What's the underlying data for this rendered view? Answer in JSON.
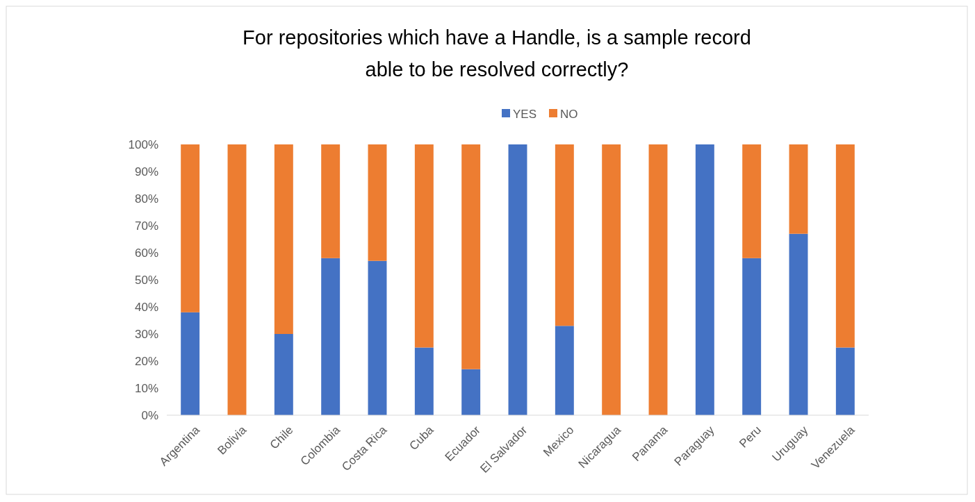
{
  "chart_data": {
    "type": "bar",
    "title": "For repositories which have a Handle, is a sample record able to be resolved correctly?",
    "categories": [
      "Argentina",
      "Bolivia",
      "Chile",
      "Colombia",
      "Costa Rica",
      "Cuba",
      "Ecuador",
      "El Salvador",
      "Mexico",
      "Nicaragua",
      "Panama",
      "Paraguay",
      "Peru",
      "Uruguay",
      "Venezuela"
    ],
    "series": [
      {
        "name": "YES",
        "color": "#4472c4",
        "values": [
          38,
          0,
          30,
          58,
          57,
          25,
          17,
          100,
          33,
          0,
          0,
          100,
          58,
          67,
          25
        ]
      },
      {
        "name": "NO",
        "color": "#ed7d31",
        "values": [
          62,
          100,
          70,
          42,
          43,
          75,
          83,
          0,
          67,
          100,
          100,
          0,
          42,
          33,
          75
        ]
      }
    ],
    "stacked": true,
    "ylim": [
      0,
      100
    ],
    "yticks": [
      {
        "value": 0,
        "label": "0%"
      },
      {
        "value": 10,
        "label": "10%"
      },
      {
        "value": 20,
        "label": "20%"
      },
      {
        "value": 30,
        "label": "30%"
      },
      {
        "value": 40,
        "label": "40%"
      },
      {
        "value": 50,
        "label": "50%"
      },
      {
        "value": 60,
        "label": "60%"
      },
      {
        "value": 70,
        "label": "70%"
      },
      {
        "value": 80,
        "label": "80%"
      },
      {
        "value": 90,
        "label": "90%"
      },
      {
        "value": 100,
        "label": "100%"
      }
    ],
    "legend": "top",
    "grid": false
  }
}
